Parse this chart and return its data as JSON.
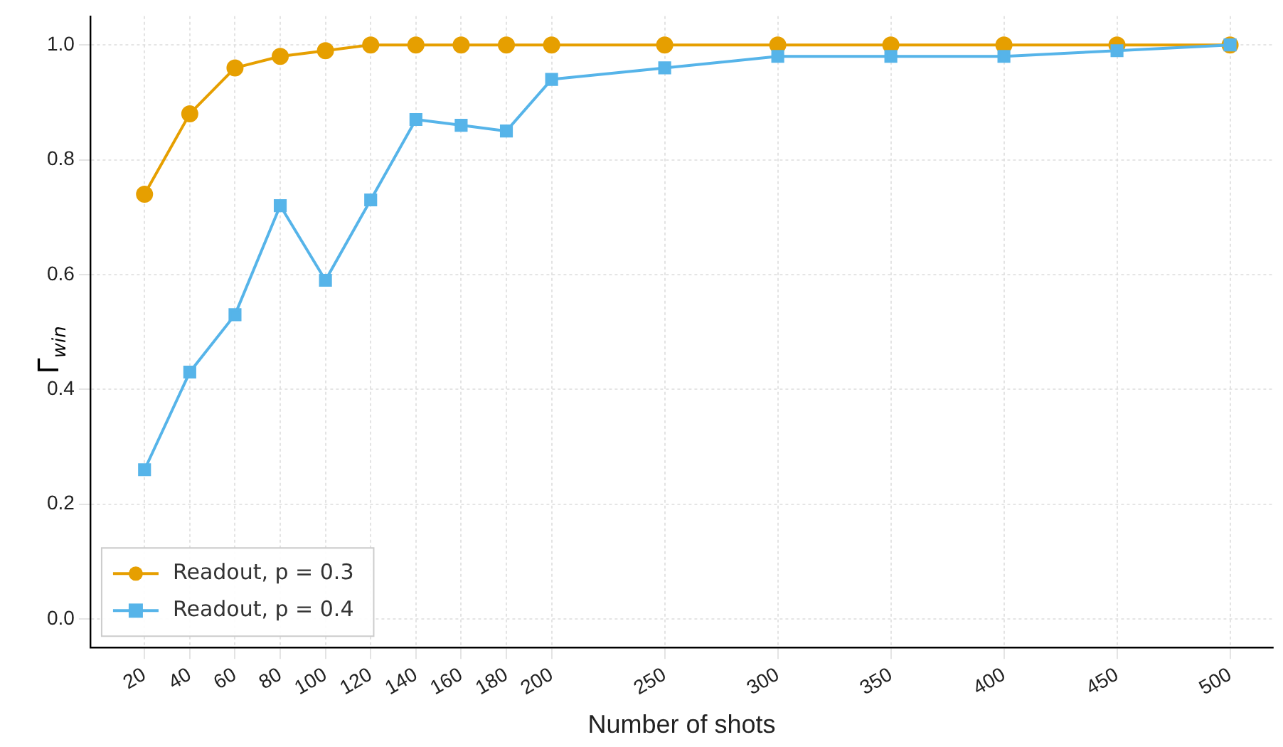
{
  "chart_data": {
    "type": "line",
    "xlabel": "Number of shots",
    "ylabel": "Γ$_{win}$",
    "x": [
      20,
      40,
      60,
      80,
      100,
      120,
      140,
      160,
      180,
      200,
      250,
      300,
      350,
      400,
      450,
      500
    ],
    "series": [
      {
        "name": "Readout, p = 0.3",
        "color": "#e69f00",
        "marker": "circle",
        "values": [
          0.74,
          0.88,
          0.96,
          0.98,
          0.99,
          1.0,
          1.0,
          1.0,
          1.0,
          1.0,
          1.0,
          1.0,
          1.0,
          1.0,
          1.0,
          1.0
        ]
      },
      {
        "name": "Readout, p = 0.4",
        "color": "#56b4e9",
        "marker": "square",
        "values": [
          0.26,
          0.43,
          0.53,
          0.72,
          0.59,
          0.73,
          0.87,
          0.86,
          0.85,
          0.94,
          0.96,
          0.98,
          0.98,
          0.98,
          0.99,
          1.0
        ]
      }
    ],
    "xlim": [
      -4,
      519
    ],
    "xticks": [
      20,
      40,
      60,
      80,
      100,
      120,
      140,
      160,
      180,
      200,
      250,
      300,
      350,
      400,
      450,
      500
    ],
    "ylim": [
      -0.05,
      1.05
    ],
    "yticks": [
      {
        "value": 0,
        "label": "0.0"
      },
      {
        "value": 0.2,
        "label": "0.2"
      },
      {
        "value": 0.4,
        "label": "0.4"
      },
      {
        "value": 0.6,
        "label": "0.6"
      },
      {
        "value": 0.8,
        "label": "0.8"
      },
      {
        "value": 1.0,
        "label": "1.0"
      }
    ],
    "grid": true,
    "legend": "bottom left",
    "line_style": "solid"
  }
}
